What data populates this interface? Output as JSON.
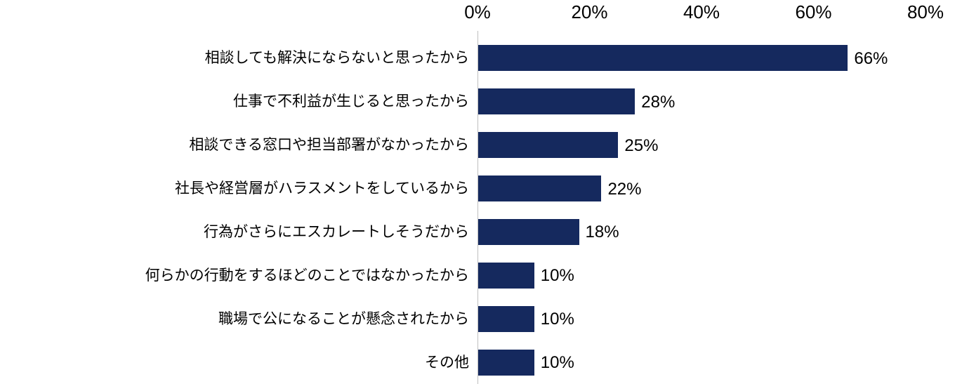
{
  "chart_data": {
    "type": "bar",
    "orientation": "horizontal",
    "title": "",
    "xlabel": "",
    "ylabel": "",
    "categories": [
      "相談しても解決にならないと思ったから",
      "仕事で不利益が生じると思ったから",
      "相談できる窓口や担当部署がなかったから",
      "社長や経営層がハラスメントをしているから",
      "行為がさらにエスカレートしそうだから",
      "何らかの行動をするほどのことではなかったから",
      "職場で公になることが懸念されたから",
      "その他"
    ],
    "values": [
      66,
      28,
      25,
      22,
      18,
      10,
      10,
      10
    ],
    "value_labels": [
      "66%",
      "28%",
      "25%",
      "22%",
      "18%",
      "10%",
      "10%",
      "10%"
    ],
    "x_axis": {
      "position": "top",
      "tick_labels": [
        "0%",
        "20%",
        "40%",
        "60%",
        "80%"
      ],
      "tick_values": [
        0,
        20,
        40,
        60,
        80
      ],
      "min": 0,
      "max": 80
    },
    "grid": false,
    "legend": false,
    "colors": {
      "bar": "#15295E",
      "axis_line": "#BFBFBF",
      "text": "#000000",
      "background": "#FFFFFF"
    }
  }
}
